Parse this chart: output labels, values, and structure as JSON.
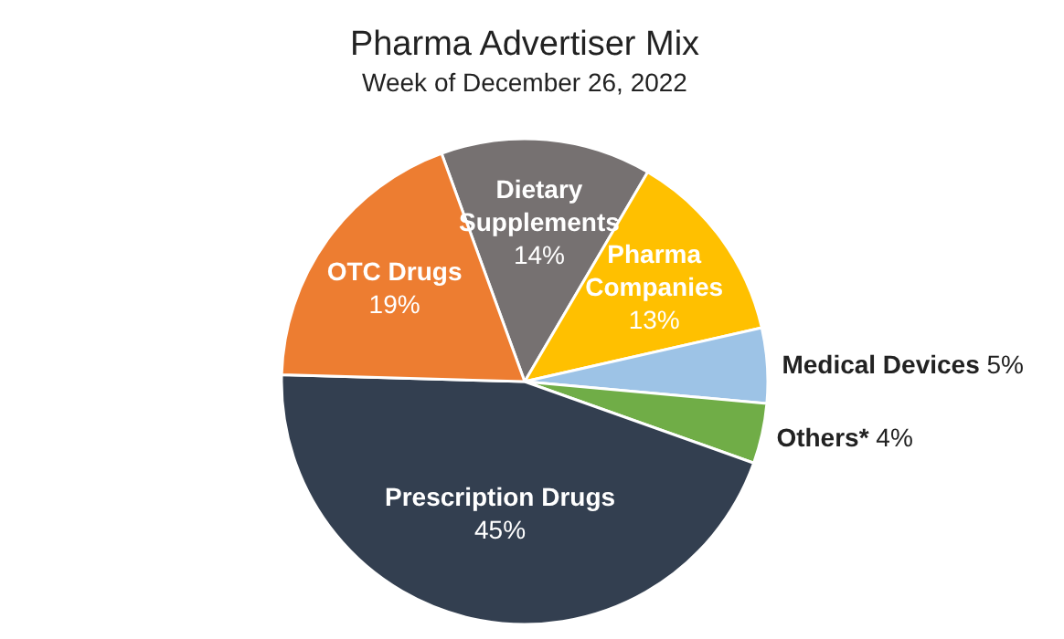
{
  "chart_data": {
    "type": "pie",
    "title": "Pharma Advertiser Mix",
    "subtitle": "Week of December 26, 2022",
    "categories": [
      "Dietary Supplements",
      "Pharma Companies",
      "Medical Devices",
      "Others*",
      "Prescription Drugs",
      "OTC Drugs"
    ],
    "values": [
      14,
      13,
      5,
      4,
      45,
      19
    ],
    "colors": [
      "#767171",
      "#ffc000",
      "#9dc3e6",
      "#70ad47",
      "#333f50",
      "#ed7d31"
    ],
    "value_labels": [
      "14%",
      "13%",
      "5%",
      "4%",
      "45%",
      "19%"
    ]
  }
}
